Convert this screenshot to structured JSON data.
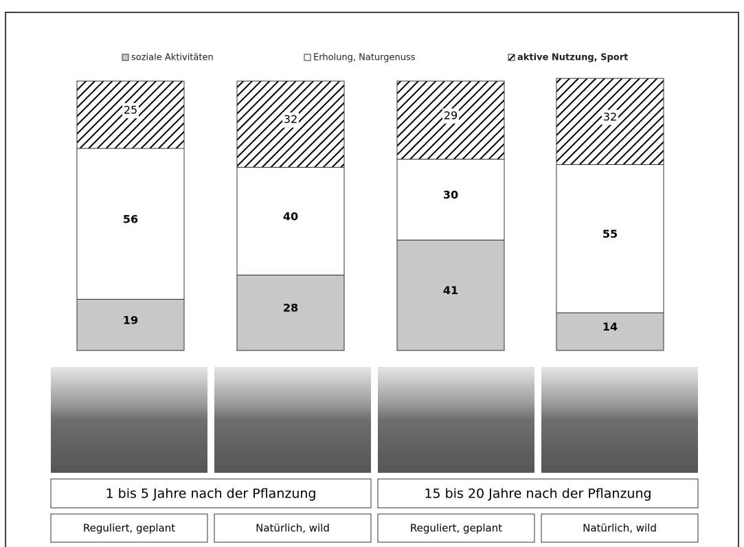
{
  "chart_data": {
    "type": "stacked_bar",
    "categories": [
      "Reguliert, geplant",
      "Natürlich, wild",
      "Reguliert, geplant",
      "Natürlich, wild"
    ],
    "groups": [
      "1 bis 5 Jahre nach der Pflanzung",
      "15 bis 20 Jahre nach der Pflanzung"
    ],
    "series": [
      {
        "name": "soziale Aktivitäten",
        "color": "#c8c8c8",
        "values": [
          19,
          28,
          41,
          14
        ]
      },
      {
        "name": "Erholung, Naturgenuss",
        "color": "#ffffff",
        "values": [
          56,
          40,
          30,
          55
        ]
      },
      {
        "name": "aktive Nutzung, Sport",
        "color": "hatch",
        "values": [
          25,
          32,
          29,
          32
        ]
      }
    ],
    "ylim": [
      0,
      100
    ]
  }
}
